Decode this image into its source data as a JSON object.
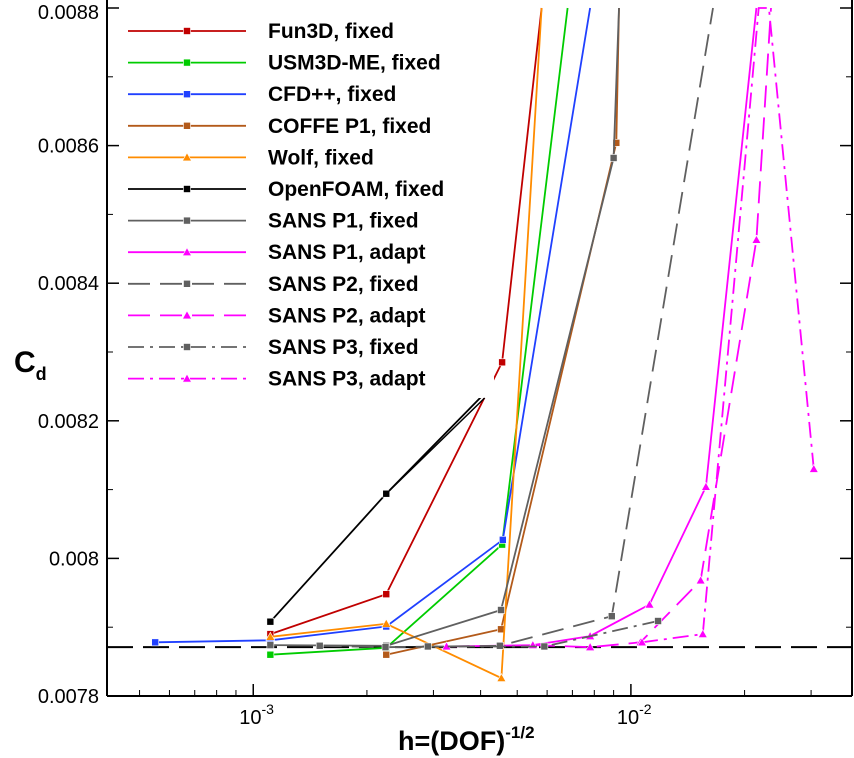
{
  "chart_data": {
    "type": "line",
    "xlabel": "h=(DOF)",
    "xlabel_exponent": "-1/2",
    "ylabel": "C",
    "ylabel_subscript": "d",
    "xscale": "log",
    "xlim": [
      0.00041,
      0.0385
    ],
    "ylim": [
      0.0078,
      0.0088
    ],
    "yticks": [
      "0.0078",
      "0.008",
      "0.0082",
      "0.0084",
      "0.0086",
      "0.0088"
    ],
    "xticks": [
      {
        "value": 0.001,
        "base": "10",
        "exp": "-3"
      },
      {
        "value": 0.01,
        "base": "10",
        "exp": "-2"
      }
    ],
    "reference_value": 0.007871,
    "grid": false,
    "legend_position": "top-left",
    "series": [
      {
        "name": "Fun3D, fixed",
        "color": "#c00000",
        "dash": "solid",
        "marker": "square",
        "x": [
          0.00111,
          0.00225,
          0.00456,
          0.0058
        ],
        "y": [
          0.00789,
          0.007948,
          0.008285,
          0.0088
        ]
      },
      {
        "name": "USM3D-ME, fixed",
        "color": "#00cc00",
        "dash": "solid",
        "marker": "square",
        "x": [
          0.00111,
          0.00225,
          0.00456,
          0.0068
        ],
        "y": [
          0.00786,
          0.00787,
          0.00802,
          0.0088
        ]
      },
      {
        "name": "CFD++, fixed",
        "color": "#2040ff",
        "dash": "solid",
        "marker": "square",
        "x": [
          0.00055,
          0.00111,
          0.00225,
          0.00458,
          0.0078
        ],
        "y": [
          0.007878,
          0.007881,
          0.007901,
          0.008027,
          0.0088
        ]
      },
      {
        "name": "COFFE P1, fixed",
        "color": "#b35a1a",
        "dash": "solid",
        "marker": "square",
        "x": [
          0.00225,
          0.00453,
          0.00915,
          0.0093
        ],
        "y": [
          0.00786,
          0.007897,
          0.008604,
          0.0088
        ]
      },
      {
        "name": "Wolf, fixed",
        "color": "#ff8c00",
        "dash": "solid",
        "marker": "triangle",
        "x": [
          0.00111,
          0.00225,
          0.00454,
          0.0058
        ],
        "y": [
          0.007886,
          0.007905,
          0.007826,
          0.0088
        ]
      },
      {
        "name": "OpenFOAM, fixed",
        "color": "#000000",
        "dash": "solid",
        "marker": "square",
        "x": [
          0.00111,
          0.00225,
          0.0041
        ],
        "y": [
          0.007908,
          0.008094,
          0.00824
        ]
      },
      {
        "name": "SANS P1, fixed",
        "color": "#606060",
        "dash": "solid",
        "marker": "square",
        "x": [
          0.00111,
          0.00225,
          0.00453,
          0.009,
          0.0093
        ],
        "y": [
          0.007874,
          0.007873,
          0.007925,
          0.008582,
          0.0088
        ]
      },
      {
        "name": "SANS P1, adapt",
        "color": "#ff00ff",
        "dash": "solid",
        "marker": "triangle",
        "x": [
          0.00325,
          0.0055,
          0.0078,
          0.0112,
          0.0158,
          0.0215
        ],
        "y": [
          0.007872,
          0.007874,
          0.007887,
          0.007933,
          0.008104,
          0.0088
        ]
      },
      {
        "name": "SANS P2, fixed",
        "color": "#606060",
        "dash": "long",
        "marker": "square",
        "x": [
          0.0015,
          0.00224,
          0.0045,
          0.0089,
          0.0165
        ],
        "y": [
          0.007873,
          0.007871,
          0.007873,
          0.007916,
          0.0088
        ]
      },
      {
        "name": "SANS P2, adapt",
        "color": "#ff00ff",
        "dash": "long",
        "marker": "triangle",
        "x": [
          0.0055,
          0.0078,
          0.0106,
          0.0153,
          0.0215,
          0.0235
        ],
        "y": [
          0.007874,
          0.007871,
          0.007878,
          0.007968,
          0.008463,
          0.0088
        ]
      },
      {
        "name": "SANS P3, fixed",
        "color": "#606060",
        "dash": "dashdot",
        "marker": "square",
        "x": [
          0.0029,
          0.0059,
          0.0118
        ],
        "y": [
          0.007872,
          0.007872,
          0.007909
        ]
      },
      {
        "name": "SANS P3, adapt",
        "color": "#ff00ff",
        "dash": "dashdot",
        "marker": "triangle",
        "x": [
          0.0107,
          0.0155,
          0.0218,
          0.0232,
          0.0305
        ],
        "y": [
          0.007878,
          0.00789,
          0.0088,
          0.0088,
          0.00813
        ]
      }
    ]
  }
}
